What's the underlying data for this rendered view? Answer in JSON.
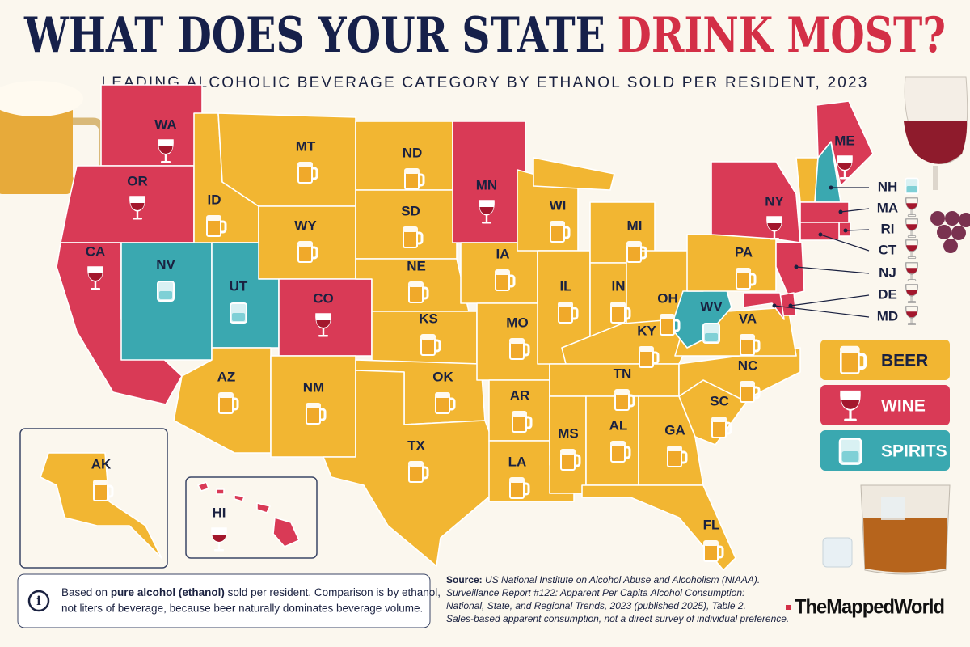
{
  "header": {
    "title_part1": "WHAT DOES YOUR STATE",
    "title_part2": "DRINK MOST?",
    "subtitle": "LEADING ALCOHOLIC BEVERAGE CATEGORY BY ETHANOL SOLD PER RESIDENT, 2023"
  },
  "legend": [
    {
      "category": "beer",
      "label": "BEER",
      "color": "#f2b632"
    },
    {
      "category": "wine",
      "label": "WINE",
      "color": "#d93a56"
    },
    {
      "category": "spirits",
      "label": "SPIRITS",
      "color": "#3aa8b0"
    }
  ],
  "states": [
    {
      "abbr": "WA",
      "category": "wine"
    },
    {
      "abbr": "OR",
      "category": "wine"
    },
    {
      "abbr": "CA",
      "category": "wine"
    },
    {
      "abbr": "NV",
      "category": "spirits"
    },
    {
      "abbr": "ID",
      "category": "beer"
    },
    {
      "abbr": "MT",
      "category": "beer"
    },
    {
      "abbr": "WY",
      "category": "beer"
    },
    {
      "abbr": "UT",
      "category": "spirits"
    },
    {
      "abbr": "CO",
      "category": "wine"
    },
    {
      "abbr": "AZ",
      "category": "beer"
    },
    {
      "abbr": "NM",
      "category": "beer"
    },
    {
      "abbr": "ND",
      "category": "beer"
    },
    {
      "abbr": "SD",
      "category": "beer"
    },
    {
      "abbr": "NE",
      "category": "beer"
    },
    {
      "abbr": "KS",
      "category": "beer"
    },
    {
      "abbr": "OK",
      "category": "beer"
    },
    {
      "abbr": "TX",
      "category": "beer"
    },
    {
      "abbr": "MN",
      "category": "wine"
    },
    {
      "abbr": "IA",
      "category": "beer"
    },
    {
      "abbr": "MO",
      "category": "beer"
    },
    {
      "abbr": "AR",
      "category": "beer"
    },
    {
      "abbr": "LA",
      "category": "beer"
    },
    {
      "abbr": "WI",
      "category": "beer"
    },
    {
      "abbr": "IL",
      "category": "beer"
    },
    {
      "abbr": "MI",
      "category": "beer"
    },
    {
      "abbr": "IN",
      "category": "beer"
    },
    {
      "abbr": "OH",
      "category": "beer"
    },
    {
      "abbr": "KY",
      "category": "beer"
    },
    {
      "abbr": "TN",
      "category": "beer"
    },
    {
      "abbr": "MS",
      "category": "beer"
    },
    {
      "abbr": "AL",
      "category": "beer"
    },
    {
      "abbr": "GA",
      "category": "beer"
    },
    {
      "abbr": "FL",
      "category": "beer"
    },
    {
      "abbr": "SC",
      "category": "beer"
    },
    {
      "abbr": "NC",
      "category": "beer"
    },
    {
      "abbr": "VA",
      "category": "beer"
    },
    {
      "abbr": "WV",
      "category": "spirits"
    },
    {
      "abbr": "PA",
      "category": "beer"
    },
    {
      "abbr": "NY",
      "category": "wine"
    },
    {
      "abbr": null,
      "category": "beer"
    },
    {
      "abbr": "NH",
      "category": "spirits"
    },
    {
      "abbr": "ME",
      "category": "wine"
    },
    {
      "abbr": "MA",
      "category": "wine"
    },
    {
      "abbr": "RI",
      "category": "wine"
    },
    {
      "abbr": "CT",
      "category": "wine"
    },
    {
      "abbr": "NJ",
      "category": "wine"
    },
    {
      "abbr": "DE",
      "category": "wine"
    },
    {
      "abbr": "MD",
      "category": "wine"
    },
    {
      "abbr": "AK",
      "category": "beer"
    },
    {
      "abbr": "HI",
      "category": "wine"
    }
  ],
  "note": {
    "lead": "Based on",
    "bold": "pure alcohol (ethanol)",
    "rest": "sold per resident. Comparison is by ethanol,",
    "line2": "not liters of beverage, because beer naturally dominates beverage volume."
  },
  "source": {
    "label": "Source:",
    "lines": [
      "US National Institute on Alcohol Abuse and Alcoholism (NIAAA).",
      "Surveillance Report #122: Apparent Per Capita Alcohol Consumption:",
      "National, State, and Regional Trends, 2023 (published 2025), Table 2.",
      "Sales-based apparent consumption, not a direct survey of individual preference."
    ]
  },
  "brand": "TheMappedWorld"
}
